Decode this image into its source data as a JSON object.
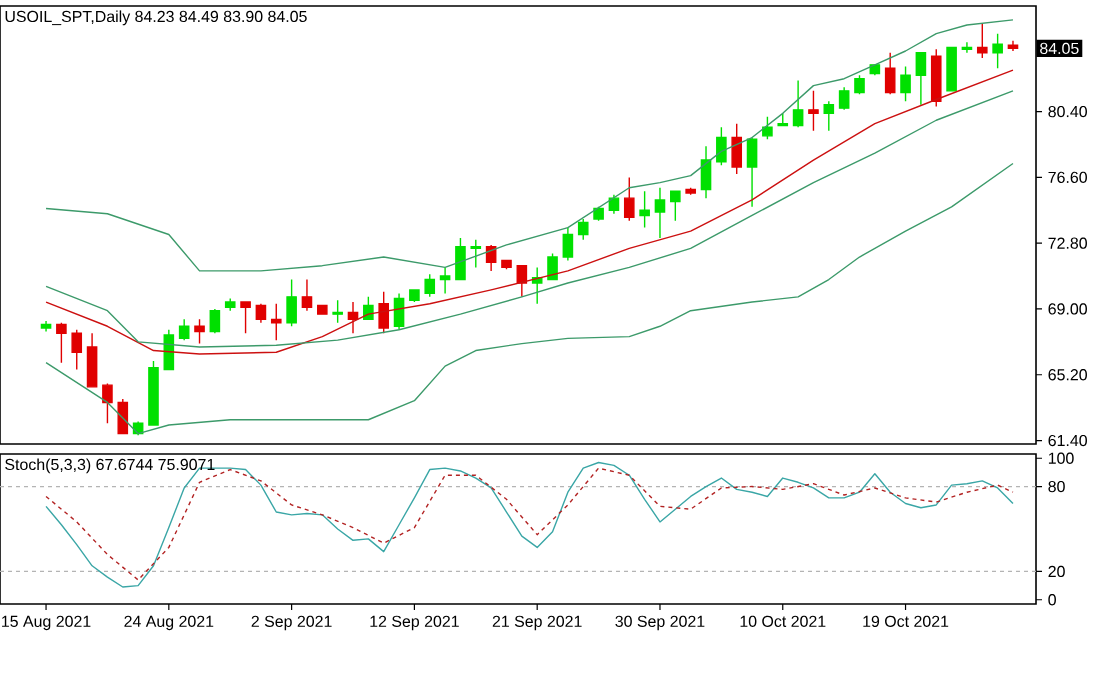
{
  "chart_data": [
    {
      "type": "candlestick",
      "title": "USOIL_SPT,Daily 84.23 84.49 83.90 84.05",
      "categories": [
        null,
        null,
        null,
        null,
        null,
        null,
        null,
        null,
        null,
        null,
        null,
        null,
        null,
        null,
        null,
        null,
        null,
        null,
        null,
        null,
        null,
        null,
        null,
        null,
        null,
        null,
        null,
        null,
        null,
        null,
        null,
        null,
        null,
        null,
        null,
        null,
        null,
        null,
        null,
        null,
        null,
        null,
        null,
        null,
        null,
        null,
        null,
        null,
        null,
        null,
        null,
        null,
        null,
        null,
        null,
        null,
        null,
        null,
        null,
        null,
        null,
        null,
        null,
        null
      ],
      "ohlc": [
        [
          67.9,
          68.3,
          67.7,
          68.1
        ],
        [
          68.1,
          68.2,
          65.9,
          67.6
        ],
        [
          67.6,
          67.8,
          65.5,
          66.5
        ],
        [
          66.8,
          67.6,
          64.5,
          64.5
        ],
        [
          64.6,
          64.7,
          62.4,
          63.6
        ],
        [
          63.6,
          63.8,
          61.8,
          61.8
        ],
        [
          61.8,
          62.5,
          61.7,
          62.4
        ],
        [
          62.3,
          66.0,
          62.3,
          65.6
        ],
        [
          65.5,
          67.8,
          65.5,
          67.5
        ],
        [
          67.3,
          68.4,
          67.2,
          68.0
        ],
        [
          68.0,
          68.4,
          67.0,
          67.7
        ],
        [
          67.7,
          69.0,
          67.6,
          68.9
        ],
        [
          69.1,
          69.6,
          68.9,
          69.4
        ],
        [
          69.4,
          69.4,
          67.6,
          69.1
        ],
        [
          69.2,
          69.3,
          68.2,
          68.4
        ],
        [
          68.4,
          69.3,
          67.2,
          68.2
        ],
        [
          68.2,
          70.7,
          68.0,
          69.7
        ],
        [
          69.7,
          70.7,
          68.9,
          69.1
        ],
        [
          69.2,
          69.2,
          68.7,
          68.7
        ],
        [
          68.7,
          69.5,
          68.2,
          68.8
        ],
        [
          68.8,
          69.4,
          67.6,
          68.4
        ],
        [
          68.4,
          69.7,
          68.4,
          69.2
        ],
        [
          69.3,
          70.0,
          67.6,
          67.9
        ],
        [
          68.0,
          69.9,
          67.8,
          69.6
        ],
        [
          69.5,
          70.1,
          69.4,
          70.1
        ],
        [
          69.9,
          71.0,
          69.7,
          70.7
        ],
        [
          70.7,
          71.4,
          69.9,
          70.9
        ],
        [
          70.7,
          73.1,
          70.7,
          72.6
        ],
        [
          72.5,
          73.0,
          71.4,
          72.6
        ],
        [
          72.6,
          72.7,
          71.2,
          71.7
        ],
        [
          71.8,
          71.8,
          71.3,
          71.4
        ],
        [
          71.5,
          71.5,
          69.7,
          70.5
        ],
        [
          70.5,
          71.4,
          69.3,
          70.8
        ],
        [
          70.7,
          72.2,
          70.7,
          72.0
        ],
        [
          72.0,
          73.7,
          71.8,
          73.3
        ],
        [
          73.3,
          74.2,
          73.0,
          74.0
        ],
        [
          74.2,
          74.9,
          74.1,
          74.8
        ],
        [
          74.7,
          75.6,
          74.5,
          75.4
        ],
        [
          75.4,
          76.6,
          74.1,
          74.3
        ],
        [
          74.4,
          75.8,
          73.7,
          74.7
        ],
        [
          74.6,
          76.0,
          73.1,
          75.3
        ],
        [
          75.2,
          75.8,
          74.1,
          75.8
        ],
        [
          75.9,
          76.0,
          75.6,
          75.7
        ],
        [
          75.9,
          78.4,
          75.4,
          77.6
        ],
        [
          77.5,
          79.5,
          77.3,
          78.9
        ],
        [
          78.9,
          79.7,
          76.8,
          77.2
        ],
        [
          77.2,
          78.9,
          74.9,
          78.8
        ],
        [
          79.0,
          80.1,
          78.8,
          79.5
        ],
        [
          79.6,
          80.3,
          79.6,
          79.7
        ],
        [
          79.6,
          82.2,
          79.5,
          80.5
        ],
        [
          80.5,
          81.6,
          79.3,
          80.3
        ],
        [
          80.3,
          81.0,
          79.3,
          80.8
        ],
        [
          80.6,
          81.8,
          80.5,
          81.6
        ],
        [
          81.5,
          82.5,
          81.4,
          82.3
        ],
        [
          82.6,
          83.1,
          82.5,
          83.1
        ],
        [
          82.9,
          83.8,
          81.4,
          81.5
        ],
        [
          81.5,
          83.0,
          81.0,
          82.5
        ],
        [
          82.5,
          83.8,
          80.8,
          83.8
        ],
        [
          83.6,
          84.0,
          80.7,
          81.0
        ],
        [
          81.6,
          84.1,
          81.6,
          84.1
        ],
        [
          84.0,
          84.4,
          83.8,
          84.1
        ],
        [
          84.1,
          85.5,
          83.5,
          83.8
        ],
        [
          83.8,
          84.9,
          82.9,
          84.3
        ],
        [
          84.23,
          84.49,
          83.9,
          84.05
        ]
      ],
      "colors": [
        "#00e000",
        "#e00000",
        "#e00000",
        "#e00000",
        "#e00000",
        "#e00000",
        "#00e000",
        "#00e000",
        "#00e000",
        "#00e000",
        "#e00000",
        "#00e000",
        "#00e000",
        "#e00000",
        "#e00000",
        "#e00000",
        "#00e000",
        "#e00000",
        "#e00000",
        "#00e000",
        "#e00000",
        "#00e000",
        "#e00000",
        "#00e000",
        "#00e000",
        "#00e000",
        "#00e000",
        "#00e000",
        "#00e000",
        "#e00000",
        "#e00000",
        "#e00000",
        "#00e000",
        "#00e000",
        "#00e000",
        "#00e000",
        "#00e000",
        "#00e000",
        "#e00000",
        "#00e000",
        "#00e000",
        "#00e000",
        "#e00000",
        "#00e000",
        "#00e000",
        "#e00000",
        "#00e000",
        "#00e000",
        "#00e000",
        "#00e000",
        "#e00000",
        "#00e000",
        "#00e000",
        "#00e000",
        "#00e000",
        "#e00000",
        "#00e000",
        "#00e000",
        "#e00000",
        "#00e000",
        "#00e000",
        "#e00000",
        "#00e000",
        "#e00000"
      ],
      "series": [
        {
          "type": "line",
          "color": "#3c9a6a",
          "values": [
            74.8,
            null,
            null,
            null,
            74.5,
            null,
            null,
            null,
            73.3,
            null,
            71.2,
            null,
            null,
            null,
            71.2,
            null,
            null,
            null,
            71.5,
            null,
            null,
            null,
            72.0,
            null,
            null,
            null,
            71.4,
            null,
            null,
            null,
            72.7,
            null,
            null,
            null,
            73.7,
            null,
            null,
            null,
            76.0,
            null,
            76.3,
            null,
            76.7,
            null,
            78.1,
            null,
            78.9,
            null,
            80.3,
            null,
            81.9,
            null,
            82.3,
            null,
            83.1,
            null,
            83.9,
            null,
            84.9,
            null,
            85.4,
            null,
            null,
            85.7
          ]
        },
        {
          "type": "line",
          "color": "#cc1010",
          "values": [
            69.4,
            null,
            null,
            null,
            68.0,
            null,
            null,
            66.6,
            null,
            null,
            66.4,
            null,
            null,
            null,
            null,
            66.5,
            null,
            null,
            67.4,
            null,
            null,
            68.7,
            null,
            null,
            null,
            69.3,
            null,
            null,
            null,
            70.1,
            null,
            null,
            null,
            null,
            71.2,
            null,
            null,
            null,
            72.5,
            null,
            null,
            null,
            73.5,
            null,
            null,
            null,
            75.3,
            null,
            null,
            null,
            77.6,
            null,
            null,
            null,
            79.7,
            null,
            null,
            null,
            81.1,
            null,
            null,
            null,
            null,
            82.8
          ]
        },
        {
          "type": "line",
          "color": "#3c9a6a",
          "values": [
            70.3,
            null,
            null,
            null,
            68.9,
            null,
            67.1,
            null,
            null,
            null,
            66.8,
            null,
            null,
            null,
            null,
            66.9,
            null,
            null,
            null,
            67.2,
            null,
            null,
            null,
            67.8,
            null,
            null,
            null,
            68.7,
            null,
            null,
            null,
            69.7,
            null,
            null,
            70.5,
            null,
            null,
            null,
            71.4,
            null,
            null,
            null,
            72.5,
            null,
            null,
            null,
            74.4,
            null,
            null,
            null,
            76.3,
            null,
            null,
            null,
            78.0,
            null,
            null,
            null,
            79.9,
            null,
            null,
            null,
            null,
            81.6
          ]
        },
        {
          "type": "line",
          "color": "#3c9a6a",
          "values": [
            65.9,
            null,
            null,
            null,
            63.6,
            null,
            61.8,
            null,
            62.3,
            null,
            null,
            null,
            62.6,
            null,
            null,
            null,
            62.6,
            null,
            null,
            null,
            null,
            62.6,
            null,
            null,
            63.7,
            null,
            65.7,
            null,
            66.6,
            null,
            null,
            67.0,
            null,
            null,
            67.3,
            null,
            null,
            null,
            67.4,
            null,
            68.0,
            null,
            68.9,
            null,
            null,
            null,
            69.4,
            null,
            null,
            69.7,
            null,
            70.7,
            null,
            72.0,
            null,
            null,
            73.5,
            null,
            null,
            74.9,
            null,
            null,
            null,
            77.4
          ]
        }
      ],
      "ylim": [
        61.2,
        86.5
      ],
      "yticks": [
        {
          "value": 61.4,
          "label": "61.40"
        },
        {
          "value": 65.2,
          "label": "65.20"
        },
        {
          "value": 69.0,
          "label": "69.00"
        },
        {
          "value": 72.8,
          "label": "72.80"
        },
        {
          "value": 76.6,
          "label": "76.60"
        },
        {
          "value": 80.4,
          "label": "80.40"
        }
      ],
      "tick_labels": "y",
      "annotations": [
        "84.05"
      ]
    },
    {
      "type": "line",
      "title": "Stoch(5,3,3) 67.6744 75.9071",
      "categories": [
        "15 Aug 2021",
        null,
        null,
        null,
        null,
        null,
        null,
        null,
        "24 Aug 2021",
        null,
        null,
        null,
        null,
        null,
        null,
        null,
        "2 Sep 2021",
        null,
        null,
        null,
        null,
        null,
        null,
        null,
        "12 Sep 2021",
        null,
        null,
        null,
        null,
        null,
        null,
        null,
        "21 Sep 2021",
        null,
        null,
        null,
        null,
        null,
        null,
        null,
        "30 Sep 2021",
        null,
        null,
        null,
        null,
        null,
        null,
        null,
        "10 Oct 2021",
        null,
        null,
        null,
        null,
        null,
        null,
        null,
        "19 Oct 2021",
        null,
        null,
        null,
        null,
        null,
        null,
        null
      ],
      "series": [
        {
          "color": "#3aa6a6",
          "values": [
            66,
            53,
            39,
            24,
            16,
            9,
            10,
            24,
            51,
            79,
            93,
            93,
            93,
            92,
            81,
            62,
            60,
            61,
            60,
            50,
            42,
            43,
            34,
            53,
            72,
            92,
            93,
            91,
            86,
            79,
            62,
            45,
            37,
            48,
            76,
            93,
            97,
            95,
            88,
            71,
            55,
            64,
            73,
            80,
            86,
            78,
            76,
            73,
            86,
            83,
            79,
            72,
            72,
            76,
            89,
            76,
            68,
            65,
            67,
            81,
            82,
            84,
            79,
            68
          ]
        },
        {
          "color": "#b22222",
          "line_style": "dashed",
          "values": [
            73,
            null,
            55,
            null,
            32,
            null,
            14,
            null,
            37,
            null,
            83,
            null,
            92,
            null,
            84,
            null,
            67,
            null,
            60,
            null,
            51,
            null,
            40,
            null,
            51,
            null,
            88,
            null,
            88,
            null,
            71,
            null,
            46,
            null,
            67,
            null,
            93,
            null,
            88,
            null,
            66,
            null,
            64,
            null,
            79,
            null,
            80,
            null,
            78,
            null,
            82,
            null,
            74,
            null,
            79,
            null,
            72,
            null,
            69,
            null,
            76,
            null,
            81,
            76
          ]
        }
      ],
      "ylim": [
        -3,
        103
      ],
      "yticks": [
        0,
        20,
        80,
        100
      ],
      "ref_lines": [
        {
          "axis": "y",
          "value": 20,
          "color": "#b4b4b4",
          "line_style": "dashed"
        },
        {
          "axis": "y",
          "value": 80,
          "color": "#b4b4b4",
          "line_style": "dashed"
        }
      ]
    }
  ]
}
